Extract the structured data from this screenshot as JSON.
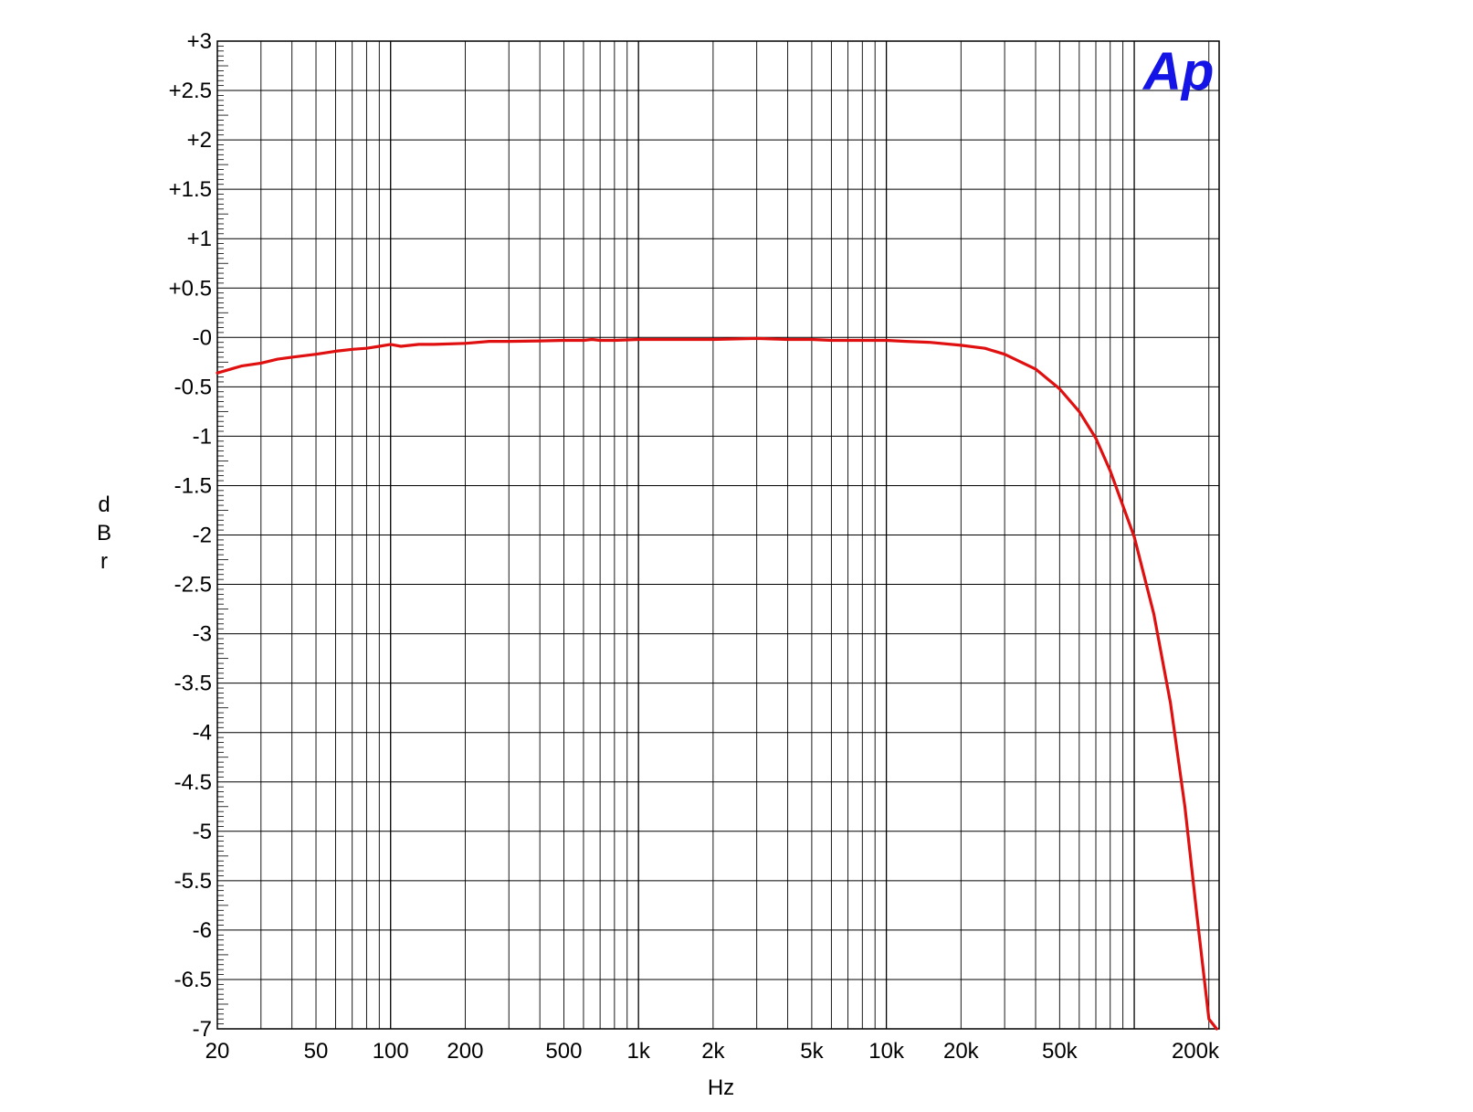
{
  "chart_data": {
    "type": "line",
    "title": "",
    "xlabel": "Hz",
    "ylabel": "dBr",
    "xscale": "log",
    "xlim": [
      20,
      220000
    ],
    "ylim": [
      -7,
      3
    ],
    "grid": true,
    "legend": "none",
    "logo_text": "Ap",
    "logo_color": "#1414e6",
    "series_color": "#e01010",
    "x_ticks": [
      {
        "value": 20,
        "label": "20"
      },
      {
        "value": 50,
        "label": "50"
      },
      {
        "value": 100,
        "label": "100"
      },
      {
        "value": 200,
        "label": "200"
      },
      {
        "value": 500,
        "label": "500"
      },
      {
        "value": 1000,
        "label": "1k"
      },
      {
        "value": 2000,
        "label": "2k"
      },
      {
        "value": 5000,
        "label": "5k"
      },
      {
        "value": 10000,
        "label": "10k"
      },
      {
        "value": 20000,
        "label": "20k"
      },
      {
        "value": 50000,
        "label": "50k"
      },
      {
        "value": 200000,
        "label": "200k"
      }
    ],
    "y_ticks": [
      {
        "value": 3,
        "label": "+3"
      },
      {
        "value": 2.5,
        "label": "+2.5"
      },
      {
        "value": 2,
        "label": "+2"
      },
      {
        "value": 1.5,
        "label": "+1.5"
      },
      {
        "value": 1,
        "label": "+1"
      },
      {
        "value": 0.5,
        "label": "+0.5"
      },
      {
        "value": 0,
        "label": "-0"
      },
      {
        "value": -0.5,
        "label": "-0.5"
      },
      {
        "value": -1,
        "label": "-1"
      },
      {
        "value": -1.5,
        "label": "-1.5"
      },
      {
        "value": -2,
        "label": "-2"
      },
      {
        "value": -2.5,
        "label": "-2.5"
      },
      {
        "value": -3,
        "label": "-3"
      },
      {
        "value": -3.5,
        "label": "-3.5"
      },
      {
        "value": -4,
        "label": "-4"
      },
      {
        "value": -4.5,
        "label": "-4.5"
      },
      {
        "value": -5,
        "label": "-5"
      },
      {
        "value": -5.5,
        "label": "-5.5"
      },
      {
        "value": -6,
        "label": "-6"
      },
      {
        "value": -6.5,
        "label": "-6.5"
      },
      {
        "value": -7,
        "label": "-7"
      }
    ],
    "series": [
      {
        "x": [
          20,
          25,
          30,
          35,
          40,
          50,
          60,
          70,
          80,
          90,
          100,
          110,
          130,
          150,
          200,
          250,
          300,
          400,
          500,
          600,
          650,
          700,
          800,
          1000,
          1500,
          2000,
          3000,
          4000,
          5000,
          6000,
          8000,
          10000,
          12000,
          15000,
          20000,
          25000,
          30000,
          40000,
          50000,
          60000,
          70000,
          80000,
          100000,
          120000,
          140000,
          160000,
          180000,
          200000,
          215000
        ],
        "y": [
          -0.36,
          -0.29,
          -0.26,
          -0.22,
          -0.2,
          -0.17,
          -0.14,
          -0.12,
          -0.11,
          -0.09,
          -0.07,
          -0.09,
          -0.07,
          -0.07,
          -0.06,
          -0.04,
          -0.04,
          -0.035,
          -0.03,
          -0.03,
          -0.02,
          -0.03,
          -0.03,
          -0.02,
          -0.02,
          -0.02,
          -0.01,
          -0.02,
          -0.02,
          -0.03,
          -0.03,
          -0.03,
          -0.04,
          -0.05,
          -0.08,
          -0.11,
          -0.17,
          -0.32,
          -0.52,
          -0.75,
          -1.02,
          -1.35,
          -2.02,
          -2.8,
          -3.7,
          -4.75,
          -5.9,
          -6.9,
          -7.0
        ]
      }
    ]
  }
}
